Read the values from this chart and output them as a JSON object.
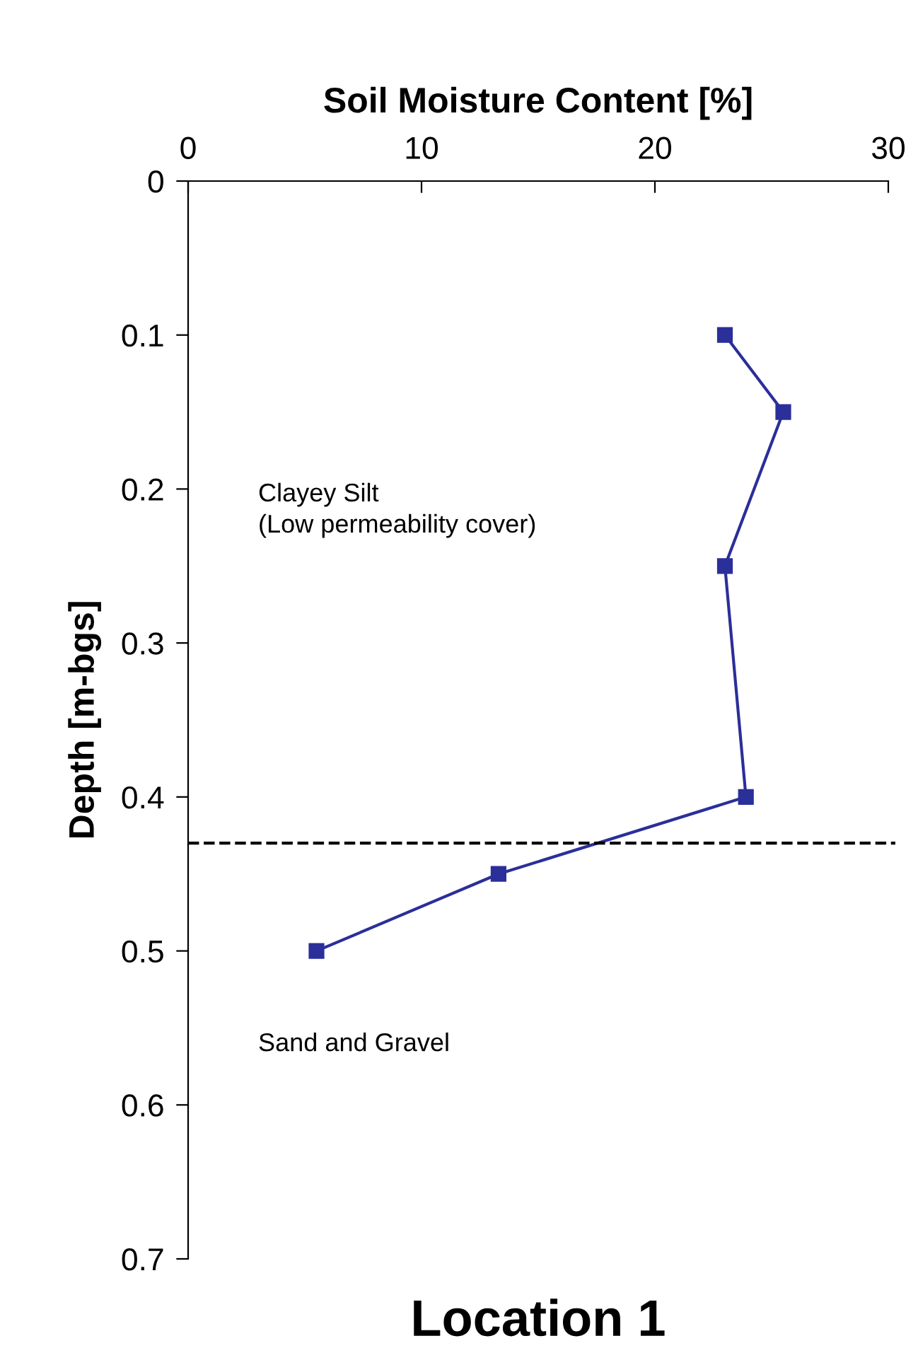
{
  "chart_data": {
    "type": "line",
    "title": "Location 1",
    "xlabel": "Soil Moisture Content [%]",
    "ylabel": "Depth [m-bgs]",
    "series": [
      {
        "color": "#2b2f99",
        "x": [
          23.0,
          25.5,
          23.0,
          23.9,
          13.3,
          5.5
        ],
        "values": [
          0.1,
          0.15,
          0.25,
          0.4,
          0.45,
          0.5
        ]
      }
    ],
    "xlim": [
      0,
      30
    ],
    "xticks": [
      0,
      10,
      20,
      30
    ],
    "ylim": [
      0.7,
      0
    ],
    "yticks": [
      0,
      0.1,
      0.2,
      0.3,
      0.4,
      0.5,
      0.6,
      0.7
    ],
    "ref_lines": [
      {
        "axis": "y",
        "value": 0.43,
        "color": "#000000",
        "line_style": "dashed"
      }
    ],
    "annotations": [
      "Clayey Silt\n(Low permeability cover)",
      "Sand and Gravel"
    ],
    "marker": "square",
    "line_style": "solid",
    "grid": false,
    "legend": false
  }
}
